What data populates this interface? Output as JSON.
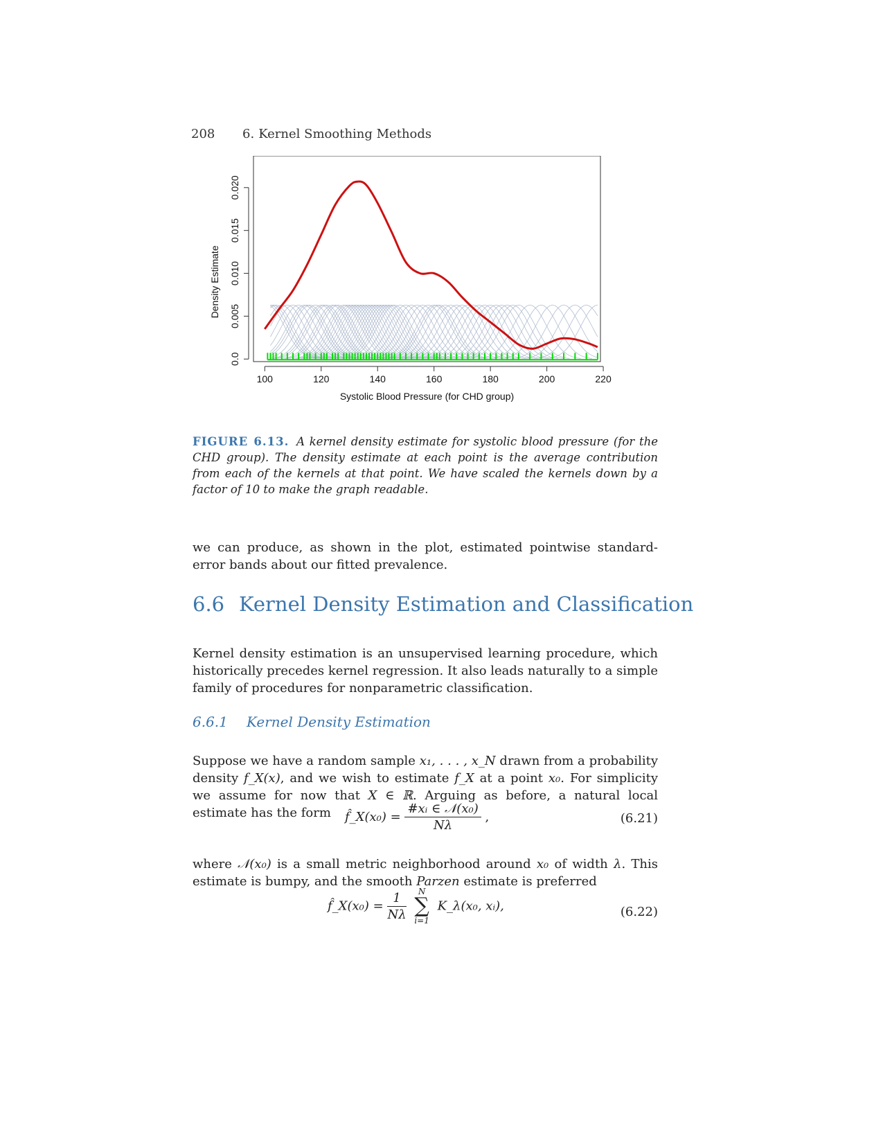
{
  "running_head": {
    "page_number": "208",
    "chapter_number": "6.",
    "chapter_title": "Kernel Smoothing Methods"
  },
  "figure": {
    "label": "FIGURE 6.13.",
    "caption": "A kernel density estimate for systolic blood pressure (for the CHD group). The density estimate at each point is the average contribution from each of the kernels at that point. We have scaled the kernels down by a factor of 10 to make the graph readable."
  },
  "paragraph_1": "we can produce, as shown in the plot, estimated pointwise standard-error bands about our fitted prevalence.",
  "section": {
    "number": "6.6",
    "title": "Kernel Density Estimation and Classification"
  },
  "paragraph_2": "Kernel density estimation is an unsupervised learning procedure, which historically precedes kernel regression. It also leads naturally to a simple family of procedures for nonparametric classification.",
  "subsection": {
    "number": "6.6.1",
    "title": "Kernel Density Estimation"
  },
  "paragraph_3": {
    "t1": "Suppose we have a random sample ",
    "m1": "x₁, . . . , x_N",
    "t2": " drawn from a probability density ",
    "m2": "f_X(x)",
    "t3": ", and we wish to estimate ",
    "m3": "f_X",
    "t4": " at a point ",
    "m4": "x₀",
    "t5": ". For simplicity we assume for now that ",
    "m5": "X ∈ ℝ",
    "t6": ". Arguing as before, a natural local estimate has the form"
  },
  "equation_6_21": {
    "lhs": "f̂_X(x₀) =",
    "numerator": "#xᵢ ∈ 𝒩(x₀)",
    "denominator": "Nλ",
    "trail": ",",
    "number": "(6.21)"
  },
  "paragraph_4": {
    "t1": "where ",
    "m1": "𝒩(x₀)",
    "t2": " is a small metric neighborhood around ",
    "m2": "x₀",
    "t3": " of width ",
    "m3": "λ",
    "t4": ". This estimate is bumpy, and the smooth ",
    "m4": "Parzen",
    "t5": " estimate is preferred"
  },
  "equation_6_22": {
    "lhs": "f̂_X(x₀) =",
    "numerator": "1",
    "denominator": "Nλ",
    "sum_upper": "N",
    "sum_lower": "i=1",
    "term": "K_λ(x₀, xᵢ),",
    "number": "(6.22)"
  },
  "chart_data": {
    "type": "line",
    "xlabel": "Systolic Blood Pressure (for CHD group)",
    "ylabel": "Density Estimate",
    "xlim": [
      96,
      219
    ],
    "ylim": [
      -0.0003,
      0.0237
    ],
    "xticks": [
      100,
      120,
      140,
      160,
      180,
      200,
      220
    ],
    "yticks": [
      0.0,
      0.005,
      0.01,
      0.015,
      0.02
    ],
    "ytick_labels": [
      "0.0",
      "0.005",
      "0.010",
      "0.015",
      "0.020"
    ],
    "grid": false,
    "colors": {
      "density": "#cc1111",
      "kernels": "#a9b6cb",
      "rug": "#00dd00"
    },
    "series": [
      {
        "kind": "density-estimate",
        "x": [
          100,
          105,
          110,
          115,
          120,
          125,
          130,
          133,
          136,
          140,
          145,
          150,
          155,
          160,
          165,
          170,
          175,
          180,
          185,
          190,
          195,
          200,
          205,
          210,
          215,
          218
        ],
        "values": [
          0.0035,
          0.0058,
          0.008,
          0.011,
          0.0145,
          0.018,
          0.0202,
          0.0207,
          0.0203,
          0.0182,
          0.0148,
          0.0113,
          0.01,
          0.01,
          0.009,
          0.0072,
          0.0056,
          0.0043,
          0.003,
          0.0017,
          0.0012,
          0.0018,
          0.0024,
          0.0023,
          0.0018,
          0.0014
        ]
      }
    ],
    "kernel_peak": 0.0063,
    "kernel_sd": 6,
    "observations": [
      101,
      102,
      103,
      104,
      106,
      108,
      110,
      112,
      114,
      115,
      116,
      118,
      120,
      121,
      122,
      124,
      125,
      126,
      128,
      129,
      130,
      131,
      132,
      133,
      134,
      135,
      136,
      137,
      138,
      139,
      140,
      141,
      142,
      143,
      144,
      145,
      146,
      148,
      150,
      152,
      154,
      156,
      158,
      160,
      161,
      162,
      164,
      166,
      168,
      170,
      172,
      174,
      176,
      178,
      180,
      182,
      184,
      186,
      188,
      190,
      194,
      198,
      202,
      206,
      210,
      214,
      218
    ]
  }
}
